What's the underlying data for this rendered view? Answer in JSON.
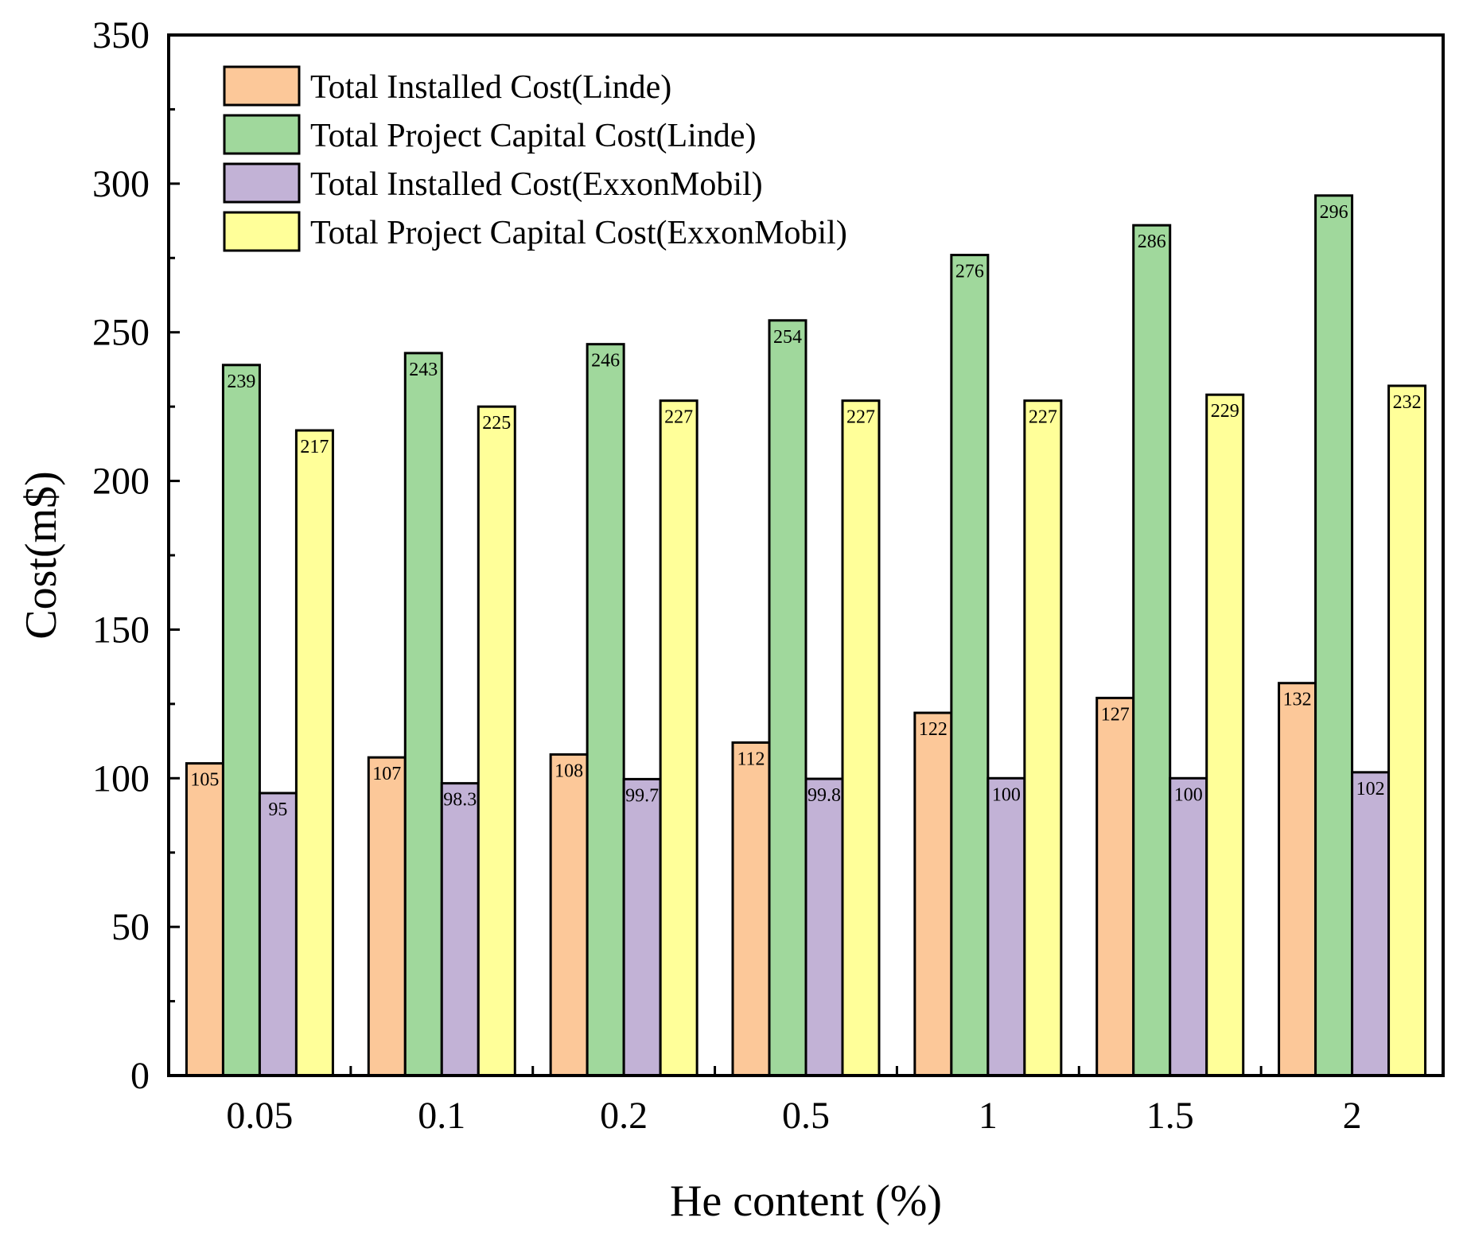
{
  "chart_data": {
    "type": "bar",
    "title": "",
    "xlabel": "He content (%)",
    "ylabel": "Cost(m$)",
    "ylim": [
      0,
      350
    ],
    "yticks": [
      0,
      50,
      100,
      150,
      200,
      250,
      300,
      350
    ],
    "grid": false,
    "legend_position": "top-left",
    "categories": [
      "0.05",
      "0.1",
      "0.2",
      "0.5",
      "1",
      "1.5",
      "2"
    ],
    "series": [
      {
        "name": "Total Installed Cost(Linde)",
        "color": "#FCC899",
        "values": [
          105,
          107,
          108,
          112,
          122,
          127,
          132
        ],
        "labels": [
          "105",
          "107",
          "108",
          "112",
          "122",
          "127",
          "132"
        ]
      },
      {
        "name": "Total Project Capital Cost(Linde)",
        "color": "#A0D89C",
        "values": [
          239,
          243,
          246,
          254,
          276,
          286,
          296
        ],
        "labels": [
          "239",
          "243",
          "246",
          "254",
          "276",
          "286",
          "296"
        ]
      },
      {
        "name": "Total Installed Cost(ExxonMobil)",
        "color": "#C2B2D6",
        "values": [
          95,
          98.3,
          99.7,
          99.8,
          100,
          100,
          102
        ],
        "labels": [
          "95",
          "98.3",
          "99.7",
          "99.8",
          "100",
          "100",
          "102"
        ]
      },
      {
        "name": "Total Project Capital Cost(ExxonMobil)",
        "color": "#FFFF99",
        "values": [
          217,
          225,
          227,
          227,
          227,
          229,
          232
        ],
        "labels": [
          "217",
          "225",
          "227",
          "227",
          "227",
          "229",
          "232"
        ]
      }
    ]
  }
}
